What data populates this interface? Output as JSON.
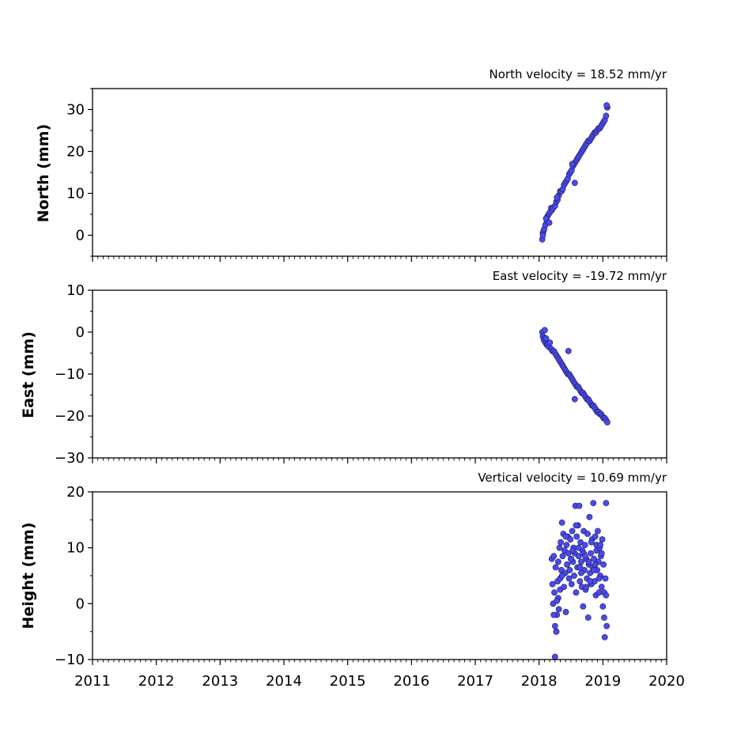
{
  "chart_data": [
    {
      "type": "scatter",
      "title": "North velocity = 18.52 mm/yr",
      "xlabel": "",
      "ylabel": "North (mm)",
      "xlim": [
        2011,
        2020
      ],
      "ylim": [
        -5,
        35
      ],
      "yticks": [
        0,
        10,
        20,
        30
      ],
      "ytick_labels": [
        "0",
        "10",
        "20",
        "30"
      ],
      "xticks": [
        2011,
        2012,
        2013,
        2014,
        2015,
        2016,
        2017,
        2018,
        2019,
        2020
      ],
      "xtick_labels": [],
      "marker_color": "#4a4af0",
      "marker_edge": "#1a1a50",
      "series": [
        {
          "x": [
            2018.05,
            2018.06,
            2018.07,
            2018.08,
            2018.1,
            2018.12,
            2018.13,
            2018.15,
            2018.17,
            2018.19,
            2018.2,
            2018.22,
            2018.25,
            2018.27,
            2018.29,
            2018.31,
            2018.33,
            2018.35,
            2018.37,
            2018.39,
            2018.41,
            2018.43,
            2018.45,
            2018.47,
            2018.49,
            2018.51,
            2018.53,
            2018.55,
            2018.57,
            2018.59,
            2018.61,
            2018.63,
            2018.65,
            2018.67,
            2018.69,
            2018.71,
            2018.73,
            2018.75,
            2018.77,
            2018.79,
            2018.81,
            2018.83,
            2018.85,
            2018.87,
            2018.89,
            2018.91,
            2018.93,
            2018.95,
            2018.97,
            2018.99,
            2019.01,
            2019.03,
            2019.05,
            2019.07,
            2018.06,
            2018.11,
            2018.16,
            2018.28,
            2018.52,
            2018.56,
            2019.06
          ],
          "y": [
            -1.0,
            0.5,
            1.0,
            1.5,
            2.5,
            3.5,
            4.5,
            5.0,
            5.5,
            6.5,
            6.0,
            6.5,
            7.0,
            8.0,
            8.5,
            9.5,
            10.5,
            10.5,
            11.0,
            12.0,
            12.5,
            13.0,
            13.5,
            14.5,
            15.0,
            15.5,
            16.5,
            17.0,
            17.5,
            18.0,
            18.5,
            19.0,
            19.5,
            20.0,
            20.5,
            21.0,
            21.5,
            22.0,
            22.5,
            22.5,
            23.0,
            23.5,
            24.0,
            24.5,
            24.5,
            25.0,
            25.5,
            25.5,
            26.0,
            26.5,
            27.0,
            27.5,
            28.5,
            30.5,
            0.0,
            4.0,
            3.0,
            9.0,
            17.0,
            12.5,
            31.0
          ]
        }
      ]
    },
    {
      "type": "scatter",
      "title": "East velocity = -19.72 mm/yr",
      "xlabel": "",
      "ylabel": "East (mm)",
      "xlim": [
        2011,
        2020
      ],
      "ylim": [
        -30,
        10
      ],
      "yticks": [
        -30,
        -20,
        -10,
        0,
        10
      ],
      "ytick_labels": [
        "−30",
        "−20",
        "−10",
        "0",
        "10"
      ],
      "xticks": [
        2011,
        2012,
        2013,
        2014,
        2015,
        2016,
        2017,
        2018,
        2019,
        2020
      ],
      "xtick_labels": [],
      "marker_color": "#4a4af0",
      "marker_edge": "#1a1a50",
      "series": [
        {
          "x": [
            2018.05,
            2018.06,
            2018.07,
            2018.08,
            2018.1,
            2018.12,
            2018.13,
            2018.15,
            2018.17,
            2018.19,
            2018.21,
            2018.23,
            2018.25,
            2018.27,
            2018.29,
            2018.31,
            2018.33,
            2018.35,
            2018.37,
            2018.39,
            2018.41,
            2018.43,
            2018.45,
            2018.47,
            2018.49,
            2018.51,
            2018.53,
            2018.55,
            2018.57,
            2018.59,
            2018.61,
            2018.63,
            2018.65,
            2018.67,
            2018.69,
            2018.71,
            2018.73,
            2018.75,
            2018.77,
            2018.79,
            2018.81,
            2018.83,
            2018.85,
            2018.87,
            2018.89,
            2018.91,
            2018.93,
            2018.95,
            2018.97,
            2018.99,
            2019.01,
            2019.03,
            2019.05,
            2019.07,
            2018.09,
            2018.11,
            2018.46,
            2018.56
          ],
          "y": [
            0.0,
            -1.0,
            -1.5,
            -2.0,
            -2.5,
            -3.0,
            -3.0,
            -3.5,
            -2.5,
            -4.0,
            -4.5,
            -4.5,
            -5.0,
            -5.5,
            -6.0,
            -6.5,
            -7.0,
            -7.5,
            -8.0,
            -8.5,
            -9.0,
            -9.5,
            -10.0,
            -10.0,
            -10.5,
            -11.0,
            -11.5,
            -12.0,
            -12.5,
            -13.0,
            -13.0,
            -13.5,
            -14.0,
            -14.5,
            -14.5,
            -15.0,
            -15.5,
            -16.0,
            -16.0,
            -16.5,
            -17.0,
            -17.5,
            -17.5,
            -18.0,
            -18.5,
            -19.0,
            -19.0,
            -19.5,
            -19.5,
            -20.0,
            -20.5,
            -20.5,
            -21.0,
            -21.5,
            0.5,
            -1.5,
            -4.5,
            -16.0
          ]
        }
      ]
    },
    {
      "type": "scatter",
      "title": "Vertical velocity = 10.69 mm/yr",
      "xlabel": "",
      "ylabel": "Height (mm)",
      "xlim": [
        2011,
        2020
      ],
      "ylim": [
        -10,
        20
      ],
      "yticks": [
        -10,
        0,
        10,
        20
      ],
      "ytick_labels": [
        "−10",
        "0",
        "10",
        "20"
      ],
      "xticks": [
        2011,
        2012,
        2013,
        2014,
        2015,
        2016,
        2017,
        2018,
        2019,
        2020
      ],
      "xtick_labels": [
        "2011",
        "2012",
        "2013",
        "2014",
        "2015",
        "2016",
        "2017",
        "2018",
        "2019",
        "2020"
      ],
      "marker_color": "#4a4af0",
      "marker_edge": "#1a1a50",
      "series": [
        {
          "x": [
            2018.2,
            2018.21,
            2018.22,
            2018.23,
            2018.24,
            2018.25,
            2018.26,
            2018.27,
            2018.28,
            2018.29,
            2018.3,
            2018.31,
            2018.32,
            2018.33,
            2018.34,
            2018.35,
            2018.36,
            2018.37,
            2018.38,
            2018.39,
            2018.4,
            2018.41,
            2018.42,
            2018.43,
            2018.44,
            2018.45,
            2018.46,
            2018.47,
            2018.48,
            2018.49,
            2018.5,
            2018.51,
            2018.52,
            2018.53,
            2018.54,
            2018.55,
            2018.56,
            2018.57,
            2018.58,
            2018.59,
            2018.6,
            2018.61,
            2018.62,
            2018.63,
            2018.64,
            2018.65,
            2018.66,
            2018.67,
            2018.68,
            2018.69,
            2018.7,
            2018.71,
            2018.72,
            2018.73,
            2018.74,
            2018.75,
            2018.76,
            2018.77,
            2018.78,
            2018.79,
            2018.8,
            2018.81,
            2018.82,
            2018.83,
            2018.84,
            2018.85,
            2018.86,
            2018.87,
            2018.88,
            2018.89,
            2018.9,
            2018.91,
            2018.92,
            2018.93,
            2018.94,
            2018.95,
            2018.96,
            2018.97,
            2018.98,
            2018.99,
            2019.0,
            2019.01,
            2019.02,
            2019.03,
            2019.04,
            2019.05,
            2019.06,
            2018.25,
            2018.27,
            2018.3,
            2018.33,
            2018.42,
            2018.5,
            2018.58,
            2018.62,
            2018.66,
            2018.7,
            2018.74,
            2018.78,
            2018.82,
            2018.86,
            2018.9,
            2018.94,
            2018.98,
            2019.02,
            2019.05,
            2018.23,
            2018.28,
            2018.36,
            2018.44,
            2018.53,
            2018.64,
            2018.72,
            2018.8,
            2018.88,
            2018.96
          ],
          "y": [
            8.0,
            3.5,
            0.0,
            8.5,
            2.0,
            -4.0,
            6.5,
            -5.0,
            -2.0,
            4.0,
            7.5,
            -1.0,
            10.0,
            2.5,
            11.0,
            6.0,
            14.5,
            8.5,
            12.5,
            3.0,
            9.5,
            5.5,
            -1.5,
            10.5,
            7.0,
            12.0,
            9.0,
            4.5,
            6.0,
            11.5,
            8.0,
            3.5,
            13.0,
            7.5,
            10.0,
            5.0,
            9.0,
            17.5,
            2.0,
            12.0,
            6.5,
            14.0,
            8.5,
            17.5,
            4.0,
            11.0,
            7.5,
            3.0,
            9.5,
            -0.5,
            13.0,
            6.0,
            10.5,
            2.5,
            8.0,
            4.5,
            12.5,
            -2.5,
            7.0,
            15.5,
            5.5,
            9.0,
            3.5,
            11.5,
            6.5,
            18.0,
            8.0,
            4.0,
            12.0,
            1.5,
            9.5,
            6.0,
            13.0,
            7.5,
            2.0,
            10.0,
            5.0,
            8.5,
            3.0,
            11.5,
            -0.5,
            7.0,
            -2.5,
            -6.0,
            4.5,
            18.0,
            -4.0,
            -9.5,
            -5.0,
            1.0,
            4.5,
            12.0,
            8.0,
            14.0,
            10.0,
            5.5,
            9.0,
            3.0,
            7.5,
            11.0,
            6.0,
            10.5,
            4.5,
            9.0,
            2.0,
            1.5,
            -2.0,
            0.5,
            5.0,
            7.0,
            9.5,
            6.5,
            8.5,
            4.0,
            7.0,
            10.5
          ]
        }
      ]
    }
  ]
}
